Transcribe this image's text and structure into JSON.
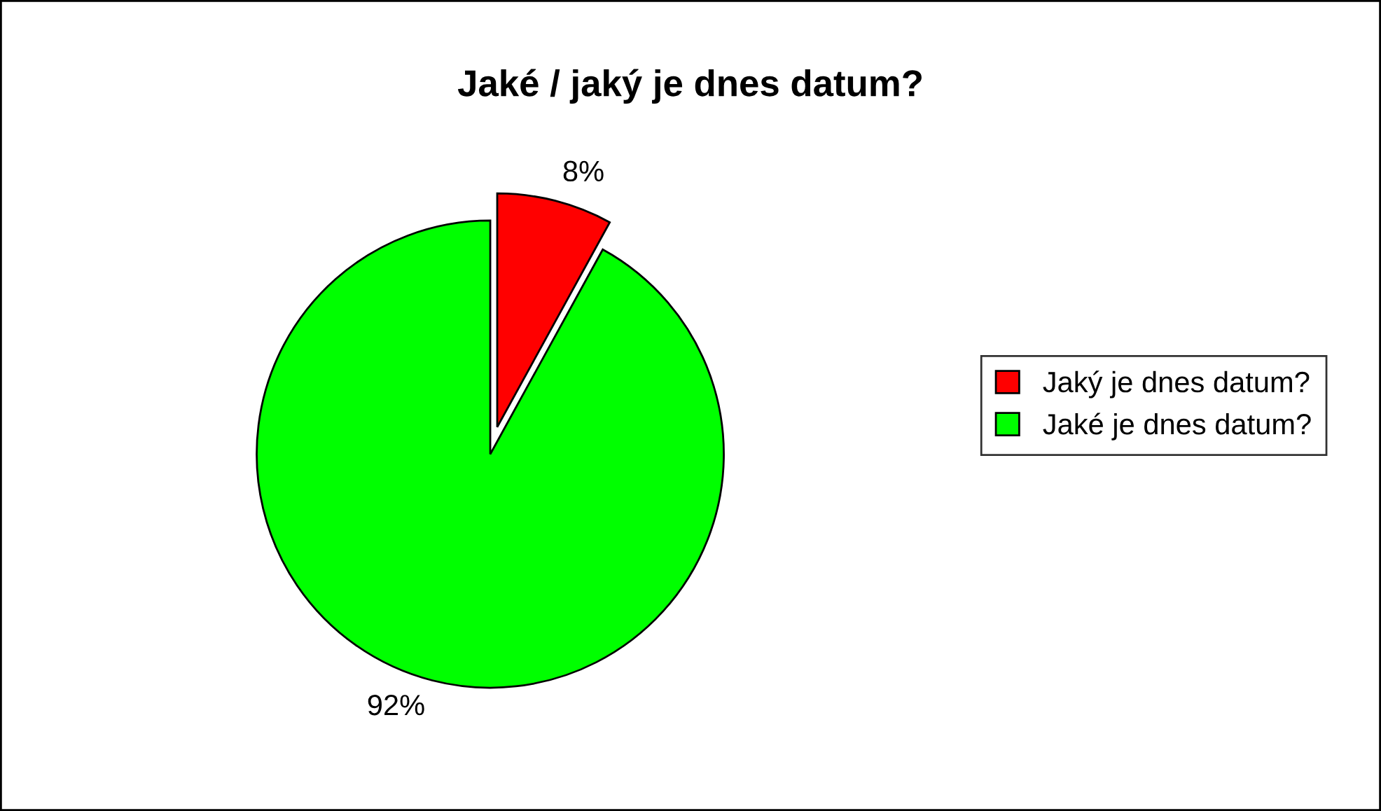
{
  "chart_data": {
    "type": "pie",
    "title": "Jaké / jaký je dnes datum?",
    "categories": [
      "Jaký je dnes datum?",
      "Jaké je dnes datum?"
    ],
    "values": [
      8,
      92
    ],
    "colors": [
      "#ff0000",
      "#00ff00"
    ],
    "value_labels": [
      "8%",
      "92%"
    ],
    "legend": "right"
  }
}
